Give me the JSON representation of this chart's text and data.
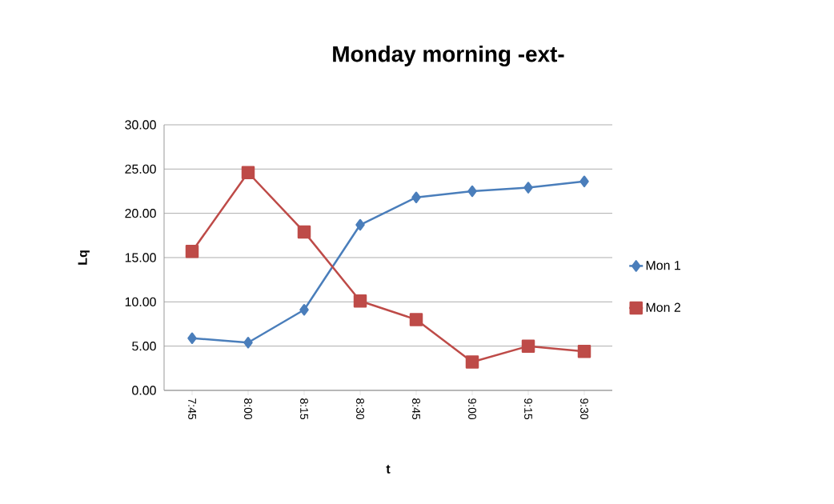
{
  "chart_data": {
    "type": "line",
    "title": "Monday  morning -ext-",
    "xlabel": "t",
    "ylabel": "Lq",
    "categories": [
      "7:45",
      "8:00",
      "8:15",
      "8:30",
      "8:45",
      "9:00",
      "9:15",
      "9:30"
    ],
    "series": [
      {
        "name": "Mon 1",
        "color": "#4a7ebb",
        "marker": "diamond",
        "values": [
          5.9,
          5.4,
          9.1,
          18.7,
          21.8,
          22.5,
          22.9,
          23.6
        ]
      },
      {
        "name": "Mon 2",
        "color": "#be4b48",
        "marker": "square",
        "values": [
          15.7,
          24.6,
          17.9,
          10.1,
          8.0,
          3.2,
          5.0,
          4.4
        ]
      }
    ],
    "ylim": [
      0,
      30
    ],
    "yticks": [
      {
        "value": 0,
        "label": "0.00"
      },
      {
        "value": 5,
        "label": "5.00"
      },
      {
        "value": 10,
        "label": "10.00"
      },
      {
        "value": 15,
        "label": "15.00"
      },
      {
        "value": 20,
        "label": "20.00"
      },
      {
        "value": 25,
        "label": "25.00"
      },
      {
        "value": 30,
        "label": "30.00"
      }
    ],
    "grid": "y",
    "legend": "right",
    "line_style": "solid"
  }
}
